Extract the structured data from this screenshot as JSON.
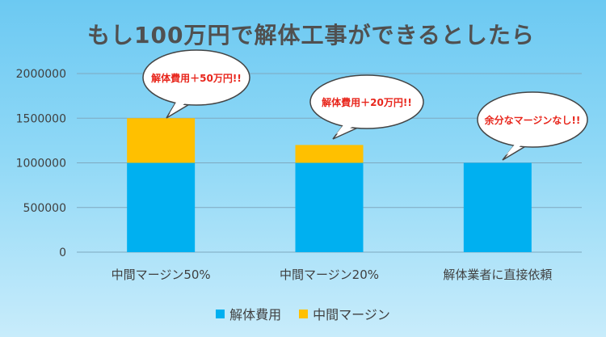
{
  "chart_data": {
    "type": "bar",
    "stacked": true,
    "title": "もし100万円で解体工事ができるとしたら",
    "categories": [
      "中間マージン50%",
      "中間マージン20%",
      "解体業者に直接依頼"
    ],
    "series": [
      {
        "name": "解体費用",
        "color": "#00b0f0",
        "values": [
          1000000,
          1000000,
          1000000
        ]
      },
      {
        "name": "中間マージン",
        "color": "#ffc000",
        "values": [
          500000,
          200000,
          0
        ]
      }
    ],
    "ylim": [
      0,
      2000000
    ],
    "yticks": [
      "0",
      "500000",
      "1000000",
      "1500000",
      "2000000"
    ],
    "grid": true,
    "legend_position": "bottom",
    "annotations": [
      "解体費用＋50万円!!",
      "解体費用＋20万円!!",
      "余分なマージンなし!!"
    ]
  }
}
